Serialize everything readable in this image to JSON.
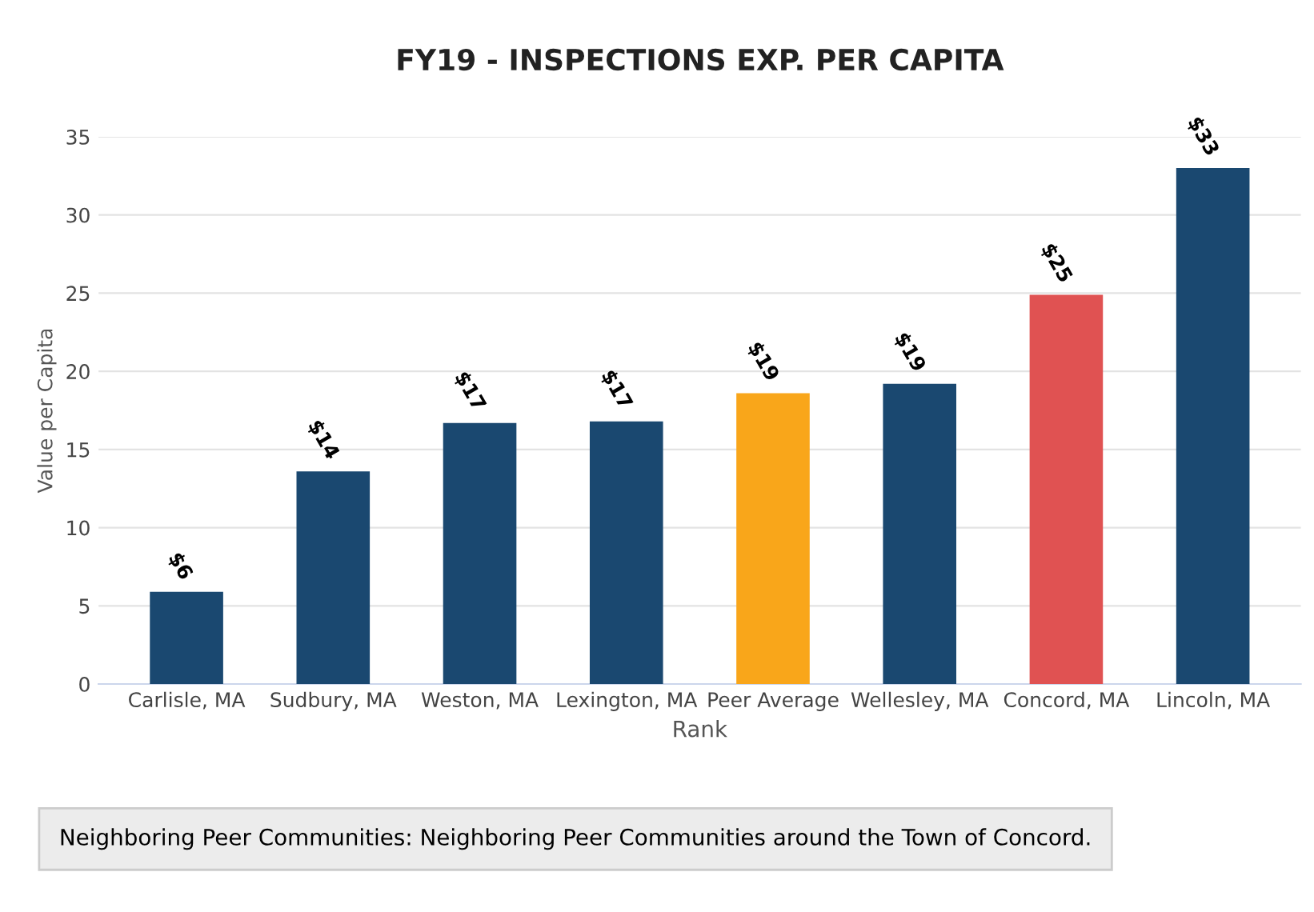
{
  "chart_data": {
    "type": "bar",
    "title": "FY19 - INSPECTIONS EXP. PER CAPITA",
    "xlabel": "Rank",
    "ylabel": "Value per Capita",
    "categories": [
      "Carlisle, MA",
      "Sudbury, MA",
      "Weston, MA",
      "Lexington, MA",
      "Peer Average",
      "Wellesley, MA",
      "Concord, MA",
      "Lincoln, MA"
    ],
    "values": [
      5.9,
      13.6,
      16.7,
      16.8,
      18.6,
      19.2,
      24.9,
      33.0
    ],
    "colors": [
      "#1a4870",
      "#1a4870",
      "#1a4870",
      "#1a4870",
      "#f9a61a",
      "#1a4870",
      "#e05252",
      "#1a4870"
    ],
    "value_labels": [
      "$6",
      "$14",
      "$17",
      "$17",
      "$19",
      "$19",
      "$25",
      "$33"
    ],
    "ylim": [
      0,
      35
    ],
    "yticks": [
      0,
      5,
      10,
      15,
      20,
      25,
      30,
      35
    ],
    "grid": "y",
    "legend": false,
    "annotations": [
      "Neighboring Peer Communities: Neighboring Peer Communities around the Town of Concord."
    ]
  }
}
